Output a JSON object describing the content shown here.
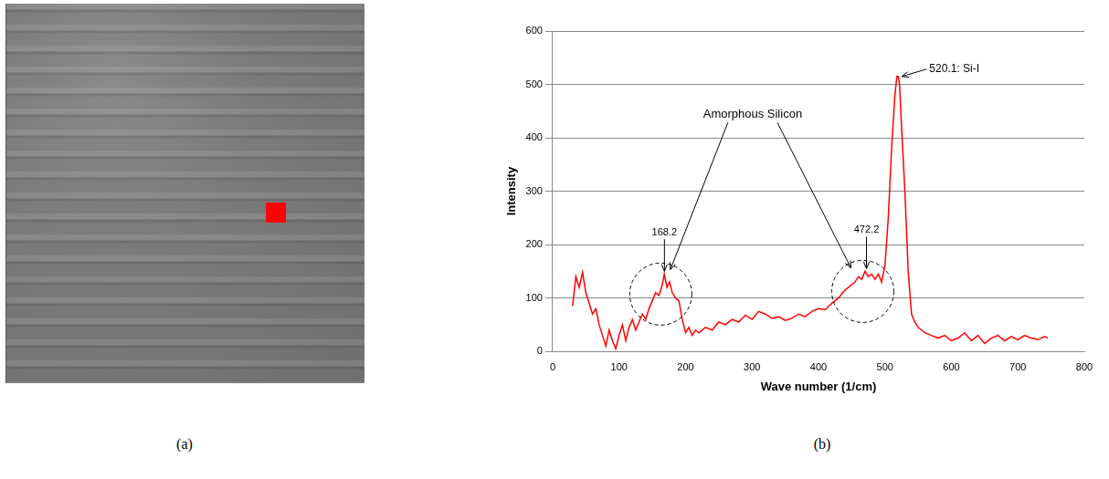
{
  "chart_data": {
    "type": "line",
    "x_label": "Wave number (1/cm)",
    "y_label": "Intensity",
    "xlim": [
      0,
      800
    ],
    "xticks": [
      0,
      100,
      200,
      300,
      400,
      500,
      600,
      700,
      800
    ],
    "ylim": [
      0,
      600
    ],
    "yticks": [
      0,
      100,
      200,
      300,
      400,
      500,
      600
    ],
    "grid": true,
    "series": [
      {
        "color": "#ff0000",
        "x": [
          30,
          35,
          40,
          45,
          50,
          55,
          60,
          65,
          70,
          75,
          80,
          85,
          90,
          95,
          100,
          105,
          110,
          115,
          120,
          125,
          130,
          135,
          140,
          145,
          150,
          155,
          160,
          165,
          168,
          172,
          176,
          180,
          185,
          190,
          195,
          200,
          205,
          210,
          215,
          220,
          230,
          240,
          250,
          260,
          270,
          280,
          290,
          300,
          310,
          320,
          330,
          340,
          350,
          360,
          370,
          380,
          390,
          400,
          410,
          420,
          430,
          440,
          450,
          455,
          460,
          465,
          470,
          475,
          480,
          485,
          490,
          495,
          500,
          505,
          510,
          515,
          518,
          520,
          522,
          525,
          530,
          535,
          540,
          545,
          550,
          560,
          570,
          580,
          590,
          600,
          610,
          620,
          630,
          640,
          650,
          660,
          670,
          680,
          690,
          700,
          710,
          720,
          730,
          740,
          745
        ],
        "values": [
          85,
          140,
          120,
          148,
          110,
          90,
          70,
          80,
          50,
          30,
          10,
          40,
          20,
          5,
          30,
          50,
          20,
          45,
          60,
          40,
          55,
          70,
          60,
          80,
          95,
          110,
          105,
          125,
          145,
          120,
          130,
          110,
          100,
          95,
          60,
          35,
          45,
          30,
          40,
          35,
          45,
          40,
          55,
          50,
          60,
          55,
          68,
          60,
          75,
          70,
          62,
          65,
          58,
          62,
          70,
          65,
          75,
          80,
          78,
          90,
          100,
          115,
          125,
          130,
          140,
          135,
          150,
          140,
          145,
          135,
          145,
          130,
          160,
          250,
          380,
          480,
          515,
          515,
          500,
          420,
          300,
          150,
          70,
          55,
          45,
          35,
          30,
          25,
          30,
          20,
          25,
          35,
          20,
          30,
          15,
          25,
          30,
          20,
          28,
          22,
          30,
          25,
          22,
          28,
          25
        ]
      }
    ],
    "annotations": {
      "peaks": [
        {
          "label": "168.2",
          "x": 168.2,
          "y": 145,
          "circled": true
        },
        {
          "label": "472.2",
          "x": 472.2,
          "y": 150,
          "circled": true
        },
        {
          "label": "520.1: Si-I",
          "x": 520.1,
          "y": 515,
          "circled": false
        }
      ],
      "group_label": "Amorphous Silicon"
    },
    "legend": false,
    "panel_labels": [
      "(a)",
      "(b)"
    ]
  }
}
